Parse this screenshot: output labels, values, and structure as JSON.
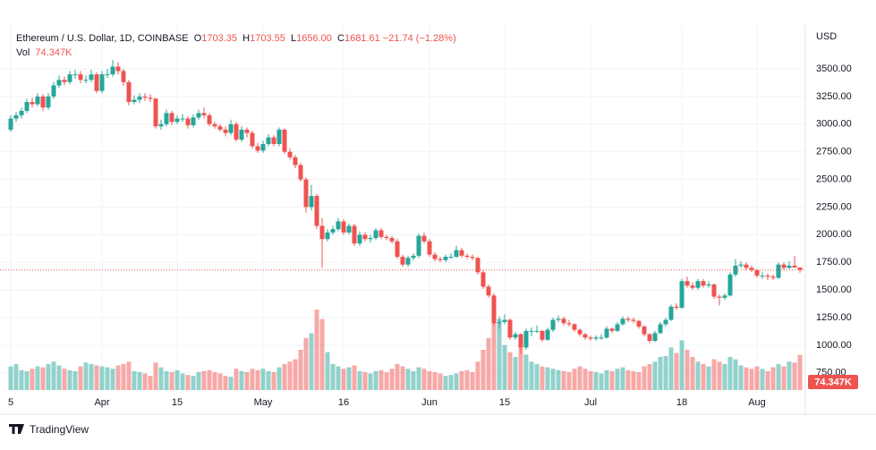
{
  "chart_data": {
    "type": "candlestick",
    "title": "Ethereum / U.S. Dollar, 1D, COINBASE",
    "ohlc": [
      {
        "label": "O",
        "value": "1703.35"
      },
      {
        "label": "H",
        "value": "1703.55"
      },
      {
        "label": "L",
        "value": "1656.00"
      },
      {
        "label": "C",
        "value": "1681.61"
      }
    ],
    "change": "−21.74 (−1.28%)",
    "volume_name": "Vol",
    "volume_text": "74.347K",
    "currency": "USD",
    "brand": "TradingView",
    "up_color": "#26a69a",
    "down_color": "#ef5350",
    "grid": true,
    "ylim": [
      595,
      3896
    ],
    "yticks": [
      {
        "value": 750,
        "label": "750.00"
      },
      {
        "value": 1000,
        "label": "1000.00"
      },
      {
        "value": 1250,
        "label": "1250.00"
      },
      {
        "value": 1500,
        "label": "1500.00"
      },
      {
        "value": 1750,
        "label": "1750.00"
      },
      {
        "value": 2000,
        "label": "2000.00"
      },
      {
        "value": 2250,
        "label": "2250.00"
      },
      {
        "value": 2500,
        "label": "2500.00"
      },
      {
        "value": 2750,
        "label": "2750.00"
      },
      {
        "value": 3000,
        "label": "3000.00"
      },
      {
        "value": 3250,
        "label": "3250.00"
      },
      {
        "value": 3500,
        "label": "3500.00"
      }
    ],
    "categories": [
      "5",
      null,
      null,
      null,
      null,
      null,
      null,
      null,
      null,
      null,
      null,
      null,
      null,
      null,
      null,
      null,
      null,
      "Apr",
      null,
      null,
      null,
      null,
      null,
      null,
      null,
      null,
      null,
      null,
      null,
      null,
      null,
      "15",
      null,
      null,
      null,
      null,
      null,
      null,
      null,
      null,
      null,
      null,
      null,
      null,
      null,
      null,
      null,
      "May",
      null,
      null,
      null,
      null,
      null,
      null,
      null,
      null,
      null,
      null,
      null,
      null,
      null,
      null,
      "16",
      null,
      null,
      null,
      null,
      null,
      null,
      null,
      null,
      null,
      null,
      null,
      null,
      null,
      null,
      null,
      "Jun",
      null,
      null,
      null,
      null,
      null,
      null,
      null,
      null,
      null,
      null,
      null,
      null,
      null,
      "15",
      null,
      null,
      null,
      null,
      null,
      null,
      null,
      null,
      null,
      null,
      null,
      null,
      null,
      null,
      null,
      "Jul",
      null,
      null,
      null,
      null,
      null,
      null,
      null,
      null,
      null,
      null,
      null,
      null,
      null,
      null,
      null,
      null,
      "18",
      null,
      null,
      null,
      null,
      null,
      null,
      null,
      null,
      null,
      null,
      null,
      null,
      null,
      "Aug",
      null,
      null,
      null,
      null,
      null,
      null,
      null,
      null
    ],
    "candles": [
      [
        2950,
        3080,
        2930,
        3050
      ],
      [
        3050,
        3110,
        3020,
        3080
      ],
      [
        3080,
        3150,
        3050,
        3120
      ],
      [
        3120,
        3230,
        3100,
        3200
      ],
      [
        3200,
        3240,
        3150,
        3180
      ],
      [
        3180,
        3280,
        3160,
        3250
      ],
      [
        3250,
        3270,
        3120,
        3150
      ],
      [
        3150,
        3280,
        3130,
        3250
      ],
      [
        3250,
        3380,
        3230,
        3350
      ],
      [
        3350,
        3440,
        3330,
        3400
      ],
      [
        3400,
        3430,
        3350,
        3380
      ],
      [
        3380,
        3480,
        3360,
        3450
      ],
      [
        3450,
        3490,
        3410,
        3450
      ],
      [
        3450,
        3480,
        3370,
        3400
      ],
      [
        3400,
        3440,
        3370,
        3400
      ],
      [
        3400,
        3490,
        3380,
        3450
      ],
      [
        3450,
        3470,
        3280,
        3300
      ],
      [
        3300,
        3480,
        3280,
        3450
      ],
      [
        3450,
        3500,
        3420,
        3450
      ],
      [
        3450,
        3580,
        3430,
        3520
      ],
      [
        3520,
        3560,
        3450,
        3480
      ],
      [
        3480,
        3500,
        3350,
        3380
      ],
      [
        3380,
        3400,
        3170,
        3200
      ],
      [
        3200,
        3260,
        3180,
        3220
      ],
      [
        3220,
        3280,
        3190,
        3250
      ],
      [
        3250,
        3280,
        3210,
        3240
      ],
      [
        3240,
        3270,
        3200,
        3230
      ],
      [
        3230,
        3240,
        2960,
        2980
      ],
      [
        2980,
        3040,
        2950,
        3000
      ],
      [
        3000,
        3130,
        2980,
        3100
      ],
      [
        3100,
        3120,
        2990,
        3020
      ],
      [
        3020,
        3080,
        3000,
        3050
      ],
      [
        3050,
        3090,
        3020,
        3050
      ],
      [
        3050,
        3070,
        2960,
        2990
      ],
      [
        2990,
        3090,
        2970,
        3060
      ],
      [
        3060,
        3130,
        3040,
        3100
      ],
      [
        3100,
        3150,
        3050,
        3080
      ],
      [
        3080,
        3100,
        2980,
        3000
      ],
      [
        3000,
        3020,
        2960,
        2980
      ],
      [
        2980,
        3000,
        2930,
        2950
      ],
      [
        2950,
        2980,
        2890,
        2920
      ],
      [
        2920,
        3040,
        2900,
        3000
      ],
      [
        3000,
        3020,
        2840,
        2860
      ],
      [
        2860,
        2980,
        2840,
        2950
      ],
      [
        2950,
        2970,
        2880,
        2920
      ],
      [
        2920,
        2940,
        2780,
        2800
      ],
      [
        2800,
        2830,
        2740,
        2760
      ],
      [
        2760,
        2850,
        2740,
        2820
      ],
      [
        2820,
        2910,
        2800,
        2880
      ],
      [
        2880,
        2900,
        2800,
        2820
      ],
      [
        2820,
        2970,
        2800,
        2950
      ],
      [
        2950,
        2960,
        2730,
        2750
      ],
      [
        2750,
        2780,
        2680,
        2700
      ],
      [
        2700,
        2720,
        2600,
        2630
      ],
      [
        2630,
        2650,
        2480,
        2500
      ],
      [
        2500,
        2520,
        2200,
        2250
      ],
      [
        2250,
        2450,
        2220,
        2350
      ],
      [
        2350,
        2370,
        2050,
        2080
      ],
      [
        2080,
        2150,
        1700,
        1960
      ],
      [
        1960,
        2050,
        1940,
        2020
      ],
      [
        2020,
        2080,
        2000,
        2050
      ],
      [
        2050,
        2150,
        2030,
        2120
      ],
      [
        2120,
        2140,
        2000,
        2020
      ],
      [
        2020,
        2100,
        2000,
        2080
      ],
      [
        2080,
        2100,
        1900,
        1920
      ],
      [
        1920,
        2030,
        1900,
        2000
      ],
      [
        2000,
        2020,
        1940,
        1960
      ],
      [
        1960,
        2000,
        1930,
        1970
      ],
      [
        1970,
        2060,
        1950,
        2040
      ],
      [
        2040,
        2060,
        1960,
        1980
      ],
      [
        1980,
        2000,
        1950,
        1970
      ],
      [
        1970,
        1990,
        1920,
        1940
      ],
      [
        1940,
        1960,
        1780,
        1800
      ],
      [
        1800,
        1820,
        1710,
        1730
      ],
      [
        1730,
        1810,
        1710,
        1790
      ],
      [
        1790,
        1830,
        1770,
        1810
      ],
      [
        1810,
        2010,
        1790,
        1990
      ],
      [
        1990,
        2020,
        1920,
        1940
      ],
      [
        1940,
        1960,
        1800,
        1820
      ],
      [
        1820,
        1840,
        1760,
        1780
      ],
      [
        1780,
        1800,
        1750,
        1770
      ],
      [
        1770,
        1820,
        1750,
        1800
      ],
      [
        1800,
        1830,
        1780,
        1800
      ],
      [
        1800,
        1900,
        1790,
        1860
      ],
      [
        1860,
        1880,
        1790,
        1810
      ],
      [
        1810,
        1830,
        1780,
        1800
      ],
      [
        1800,
        1820,
        1770,
        1790
      ],
      [
        1790,
        1800,
        1640,
        1660
      ],
      [
        1660,
        1680,
        1510,
        1530
      ],
      [
        1530,
        1550,
        1430,
        1450
      ],
      [
        1450,
        1470,
        1180,
        1200
      ],
      [
        1200,
        1260,
        1150,
        1210
      ],
      [
        1210,
        1280,
        1190,
        1230
      ],
      [
        1230,
        1240,
        1050,
        1070
      ],
      [
        1070,
        1120,
        1050,
        1100
      ],
      [
        1100,
        1110,
        920,
        980
      ],
      [
        980,
        1150,
        960,
        1130
      ],
      [
        1130,
        1160,
        1080,
        1130
      ],
      [
        1130,
        1180,
        1110,
        1130
      ],
      [
        1130,
        1140,
        1030,
        1050
      ],
      [
        1050,
        1160,
        1040,
        1140
      ],
      [
        1140,
        1250,
        1120,
        1230
      ],
      [
        1230,
        1270,
        1210,
        1240
      ],
      [
        1240,
        1260,
        1180,
        1200
      ],
      [
        1200,
        1230,
        1170,
        1190
      ],
      [
        1190,
        1200,
        1120,
        1140
      ],
      [
        1140,
        1150,
        1080,
        1100
      ],
      [
        1100,
        1110,
        1050,
        1070
      ],
      [
        1070,
        1090,
        1040,
        1060
      ],
      [
        1060,
        1090,
        1040,
        1070
      ],
      [
        1070,
        1100,
        1050,
        1070
      ],
      [
        1070,
        1170,
        1060,
        1150
      ],
      [
        1150,
        1160,
        1110,
        1130
      ],
      [
        1130,
        1210,
        1120,
        1190
      ],
      [
        1190,
        1260,
        1180,
        1240
      ],
      [
        1240,
        1260,
        1210,
        1230
      ],
      [
        1230,
        1250,
        1200,
        1220
      ],
      [
        1220,
        1230,
        1150,
        1170
      ],
      [
        1170,
        1180,
        1080,
        1100
      ],
      [
        1100,
        1110,
        1020,
        1040
      ],
      [
        1040,
        1130,
        1030,
        1110
      ],
      [
        1110,
        1210,
        1100,
        1190
      ],
      [
        1190,
        1250,
        1170,
        1230
      ],
      [
        1230,
        1370,
        1220,
        1350
      ],
      [
        1350,
        1380,
        1320,
        1340
      ],
      [
        1340,
        1600,
        1330,
        1580
      ],
      [
        1580,
        1620,
        1520,
        1540
      ],
      [
        1540,
        1570,
        1500,
        1520
      ],
      [
        1520,
        1600,
        1500,
        1580
      ],
      [
        1580,
        1600,
        1520,
        1540
      ],
      [
        1540,
        1580,
        1520,
        1550
      ],
      [
        1550,
        1560,
        1420,
        1440
      ],
      [
        1440,
        1460,
        1360,
        1430
      ],
      [
        1430,
        1470,
        1410,
        1450
      ],
      [
        1450,
        1660,
        1440,
        1640
      ],
      [
        1640,
        1780,
        1620,
        1720
      ],
      [
        1720,
        1760,
        1700,
        1730
      ],
      [
        1730,
        1750,
        1680,
        1700
      ],
      [
        1700,
        1720,
        1660,
        1680
      ],
      [
        1680,
        1690,
        1610,
        1630
      ],
      [
        1630,
        1660,
        1600,
        1630
      ],
      [
        1630,
        1650,
        1590,
        1620
      ],
      [
        1620,
        1640,
        1590,
        1610
      ],
      [
        1610,
        1750,
        1600,
        1730
      ],
      [
        1730,
        1750,
        1680,
        1700
      ],
      [
        1700,
        1760,
        1690,
        1720
      ],
      [
        1720,
        1810,
        1700,
        1703.35
      ],
      [
        1703.35,
        1703.55,
        1656,
        1681.61
      ]
    ],
    "volume": [
      50000,
      55000,
      42000,
      40000,
      45000,
      50000,
      48000,
      55000,
      60000,
      52000,
      45000,
      42000,
      40000,
      50000,
      58000,
      55000,
      52000,
      50000,
      48000,
      45000,
      52000,
      55000,
      60000,
      40000,
      38000,
      35000,
      30000,
      58000,
      48000,
      40000,
      38000,
      42000,
      35000,
      32000,
      30000,
      38000,
      40000,
      42000,
      38000,
      35000,
      30000,
      28000,
      45000,
      40000,
      38000,
      45000,
      42000,
      45000,
      40000,
      38000,
      48000,
      55000,
      60000,
      65000,
      85000,
      110000,
      120000,
      170000,
      150000,
      80000,
      55000,
      50000,
      45000,
      48000,
      52000,
      40000,
      38000,
      35000,
      40000,
      42000,
      38000,
      45000,
      55000,
      50000,
      45000,
      40000,
      48000,
      45000,
      40000,
      38000,
      35000,
      30000,
      32000,
      35000,
      40000,
      42000,
      38000,
      60000,
      85000,
      110000,
      170000,
      150000,
      95000,
      80000,
      70000,
      110000,
      75000,
      60000,
      55000,
      50000,
      48000,
      45000,
      42000,
      40000,
      38000,
      45000,
      50000,
      45000,
      40000,
      38000,
      35000,
      42000,
      40000,
      45000,
      48000,
      42000,
      40000,
      38000,
      50000,
      55000,
      60000,
      70000,
      72000,
      90000,
      78000,
      105000,
      85000,
      70000,
      60000,
      55000,
      50000,
      65000,
      60000,
      55000,
      70000,
      65000,
      52000,
      48000,
      45000,
      50000,
      45000,
      40000,
      48000,
      55000,
      50000,
      60000,
      58000,
      74347
    ]
  }
}
